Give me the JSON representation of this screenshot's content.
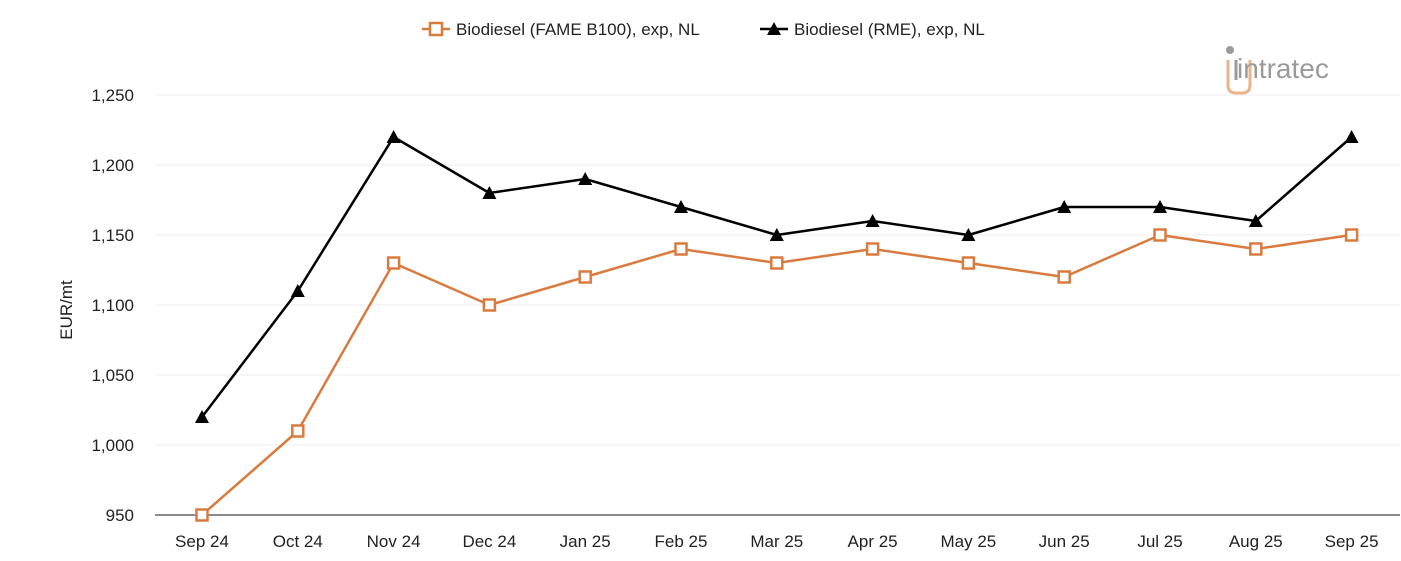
{
  "colors": {
    "fame": "#d97b3f",
    "rme": "#000000",
    "grid": "#eeeeee",
    "axis": "#444444",
    "logo_gray": "#9a9a9a",
    "logo_accent": "#e9b48a"
  },
  "logo": {
    "text": "intratec",
    "icon": "intratec-logo-icon"
  },
  "chart_data": {
    "type": "line",
    "categories": [
      "Sep 24",
      "Oct 24",
      "Nov 24",
      "Dec 24",
      "Jan 25",
      "Feb 25",
      "Mar 25",
      "Apr 25",
      "May 25",
      "Jun 25",
      "Jul 25",
      "Aug 25",
      "Sep 25"
    ],
    "series": [
      {
        "name": "Biodiesel (FAME B100), exp, NL",
        "marker": "hollow-square",
        "values": [
          950,
          1010,
          1130,
          1100,
          1120,
          1140,
          1130,
          1140,
          1130,
          1120,
          1150,
          1140,
          1150
        ]
      },
      {
        "name": "Biodiesel (RME), exp, NL",
        "marker": "filled-triangle",
        "values": [
          1020,
          1110,
          1220,
          1180,
          1190,
          1170,
          1150,
          1160,
          1150,
          1170,
          1170,
          1160,
          1220
        ]
      }
    ],
    "ylabel": "EUR/mt",
    "xlabel": "",
    "ylim": [
      950,
      1250
    ],
    "yticks": [
      950,
      1000,
      1050,
      1100,
      1150,
      1200,
      1250
    ],
    "ytick_labels": [
      "950",
      "1,000",
      "1,050",
      "1,100",
      "1,150",
      "1,200",
      "1,250"
    ],
    "grid": true,
    "legend_position": "top-center"
  }
}
